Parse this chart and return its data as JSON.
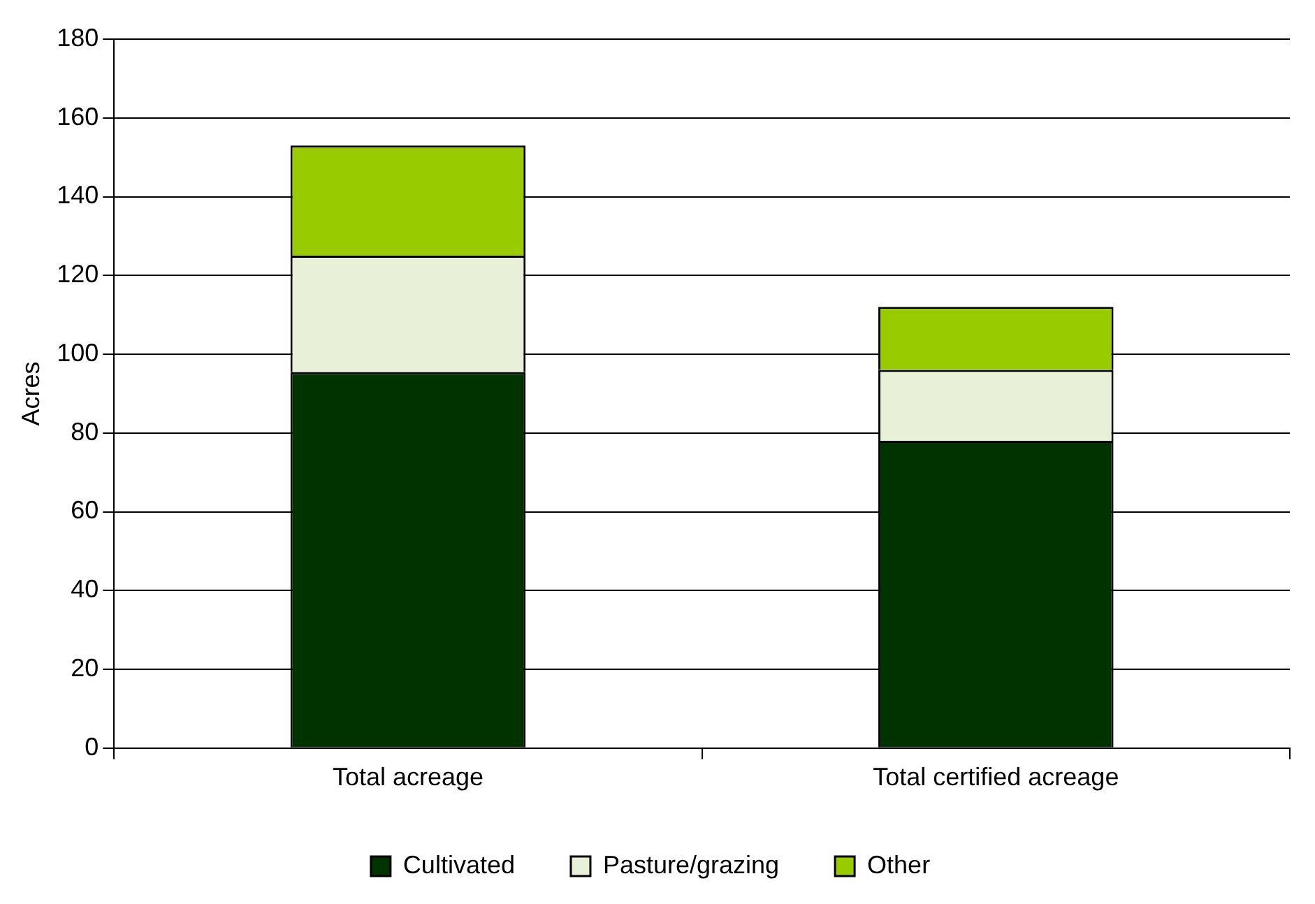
{
  "chart_data": {
    "type": "bar",
    "ylabel": "Acres",
    "categories": [
      "Total acreage",
      "Total certified acreage"
    ],
    "stacked": true,
    "series": [
      {
        "name": "Cultivated",
        "color": "#003300",
        "values": [
          95.5,
          78
        ]
      },
      {
        "name": "Pasture/grazing",
        "color": "#e8f0d8",
        "values": [
          29.5,
          18
        ]
      },
      {
        "name": "Other",
        "color": "#99cc00",
        "values": [
          28,
          16
        ]
      }
    ],
    "ylim": [
      0,
      180
    ],
    "yticks": [
      0,
      20,
      40,
      60,
      80,
      100,
      120,
      140,
      160,
      180
    ],
    "grid": "y",
    "legend": "bottom"
  }
}
